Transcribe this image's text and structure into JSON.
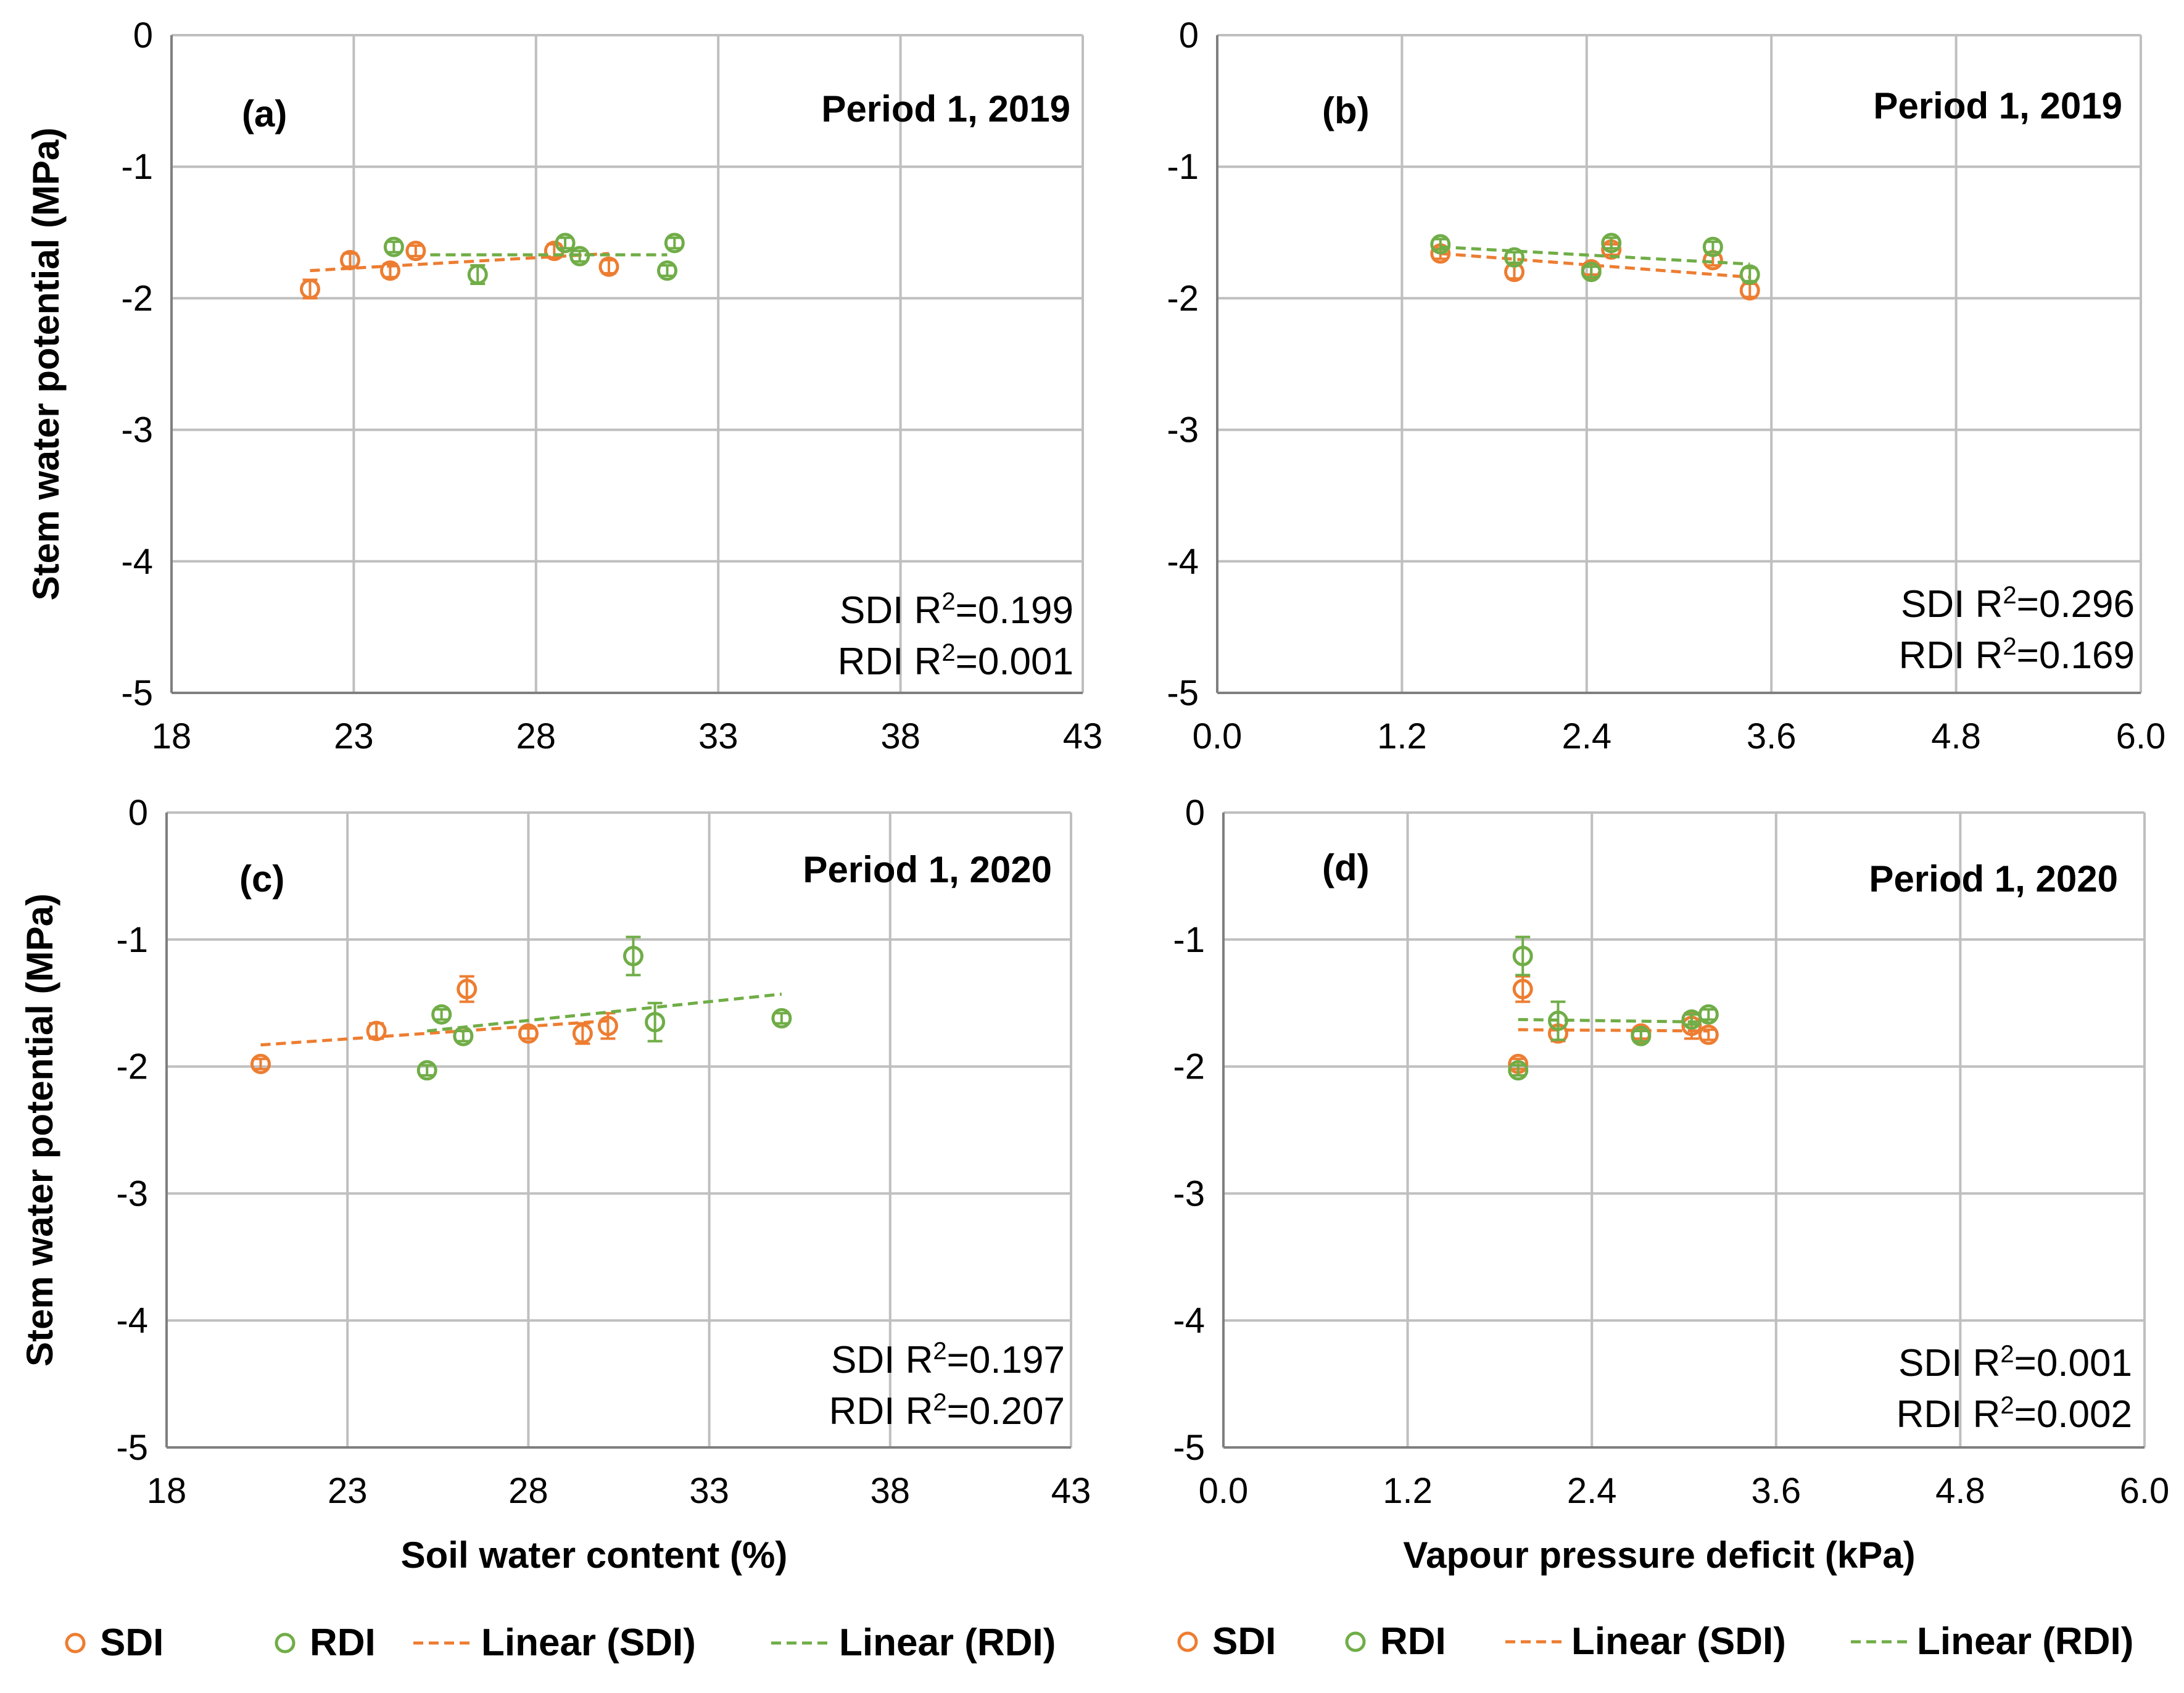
{
  "colors": {
    "sdi": "#ED7D31",
    "rdi": "#70AD47",
    "grid": "#BFBFBF",
    "axis": "#7F7F7F"
  },
  "legends": [
    {
      "items": [
        "SDI",
        "RDI",
        "Linear (SDI)",
        "Linear (RDI)"
      ]
    },
    {
      "items": [
        "SDI",
        "RDI",
        "Linear (SDI)",
        "Linear (RDI)"
      ]
    }
  ],
  "chart_data": [
    {
      "type": "scatter",
      "panel": "(a)",
      "title": "Period 1, 2019",
      "xlabel": "",
      "ylabel": "Stem water potential (MPa)",
      "xlim": [
        18,
        43
      ],
      "xticks": [
        18,
        23,
        28,
        33,
        38,
        43
      ],
      "xdec": 0,
      "ylim": [
        -5,
        0
      ],
      "yticks": [
        0,
        -1,
        -2,
        -3,
        -4,
        -5
      ],
      "r2": {
        "sdi_prefix": "SDI R",
        "sdi_value": "=0.199",
        "rdi_prefix": "RDI R",
        "rdi_value": "=0.001",
        "sup": "2"
      },
      "series": [
        {
          "name": "SDI",
          "x": [
            21.8,
            22.9,
            24.0,
            24.7,
            28.5,
            30.0
          ],
          "y": [
            -1.93,
            -1.71,
            -1.79,
            -1.64,
            -1.64,
            -1.76
          ],
          "err": [
            0.07,
            0.05,
            0.05,
            0.04,
            0.05,
            0.05
          ],
          "trend": {
            "x": [
              21.8,
              30.0
            ],
            "y": [
              -1.79,
              -1.66
            ]
          }
        },
        {
          "name": "RDI",
          "x": [
            24.1,
            26.4,
            28.8,
            29.2,
            31.6,
            31.8
          ],
          "y": [
            -1.61,
            -1.82,
            -1.58,
            -1.68,
            -1.79,
            -1.58
          ],
          "err": [
            0.04,
            0.07,
            0.04,
            0.04,
            0.04,
            0.04
          ],
          "trend": {
            "x": [
              25.1,
              31.6
            ],
            "y": [
              -1.67,
              -1.67
            ]
          }
        }
      ]
    },
    {
      "type": "scatter",
      "panel": "(b)",
      "title": "Period 1, 2019",
      "xlabel": "",
      "ylabel": "",
      "xlim": [
        0,
        6
      ],
      "xticks": [
        0,
        1.2,
        2.4,
        3.6,
        4.8,
        6.0
      ],
      "xdec": 1,
      "ylim": [
        -5,
        0
      ],
      "yticks": [
        0,
        -1,
        -2,
        -3,
        -4,
        -5
      ],
      "r2": {
        "sdi_prefix": "SDI R",
        "sdi_value": "=0.296",
        "rdi_prefix": "RDI R",
        "rdi_value": "=0.169",
        "sup": "2"
      },
      "series": [
        {
          "name": "SDI",
          "x": [
            1.45,
            1.93,
            2.43,
            2.56,
            3.22,
            3.46
          ],
          "y": [
            -1.66,
            -1.8,
            -1.78,
            -1.63,
            -1.71,
            -1.94
          ],
          "err": [
            0.04,
            0.05,
            0.04,
            0.04,
            0.04,
            0.05
          ],
          "trend": {
            "x": [
              1.45,
              3.46
            ],
            "y": [
              -1.66,
              -1.84
            ]
          }
        },
        {
          "name": "RDI",
          "x": [
            1.45,
            1.93,
            2.43,
            2.56,
            3.22,
            3.46
          ],
          "y": [
            -1.59,
            -1.69,
            -1.8,
            -1.58,
            -1.61,
            -1.82
          ],
          "err": [
            0.04,
            0.04,
            0.04,
            0.04,
            0.04,
            0.05
          ],
          "trend": {
            "x": [
              1.45,
              3.46
            ],
            "y": [
              -1.61,
              -1.74
            ]
          }
        }
      ]
    },
    {
      "type": "scatter",
      "panel": "(c)",
      "title": "Period 1, 2020",
      "xlabel": "Soil water content (%)",
      "ylabel": "Stem water potential (MPa)",
      "xlim": [
        18,
        43
      ],
      "xticks": [
        18,
        23,
        28,
        33,
        38,
        43
      ],
      "xdec": 0,
      "ylim": [
        -5,
        0
      ],
      "yticks": [
        0,
        -1,
        -2,
        -3,
        -4,
        -5
      ],
      "r2": {
        "sdi_prefix": "SDI R",
        "sdi_value": "=0.197",
        "rdi_prefix": "RDI R",
        "rdi_value": "=0.207",
        "sup": "2"
      },
      "series": [
        {
          "name": "SDI",
          "x": [
            20.6,
            23.8,
            26.3,
            28.0,
            29.5,
            30.2
          ],
          "y": [
            -1.98,
            -1.72,
            -1.39,
            -1.74,
            -1.74,
            -1.68
          ],
          "err": [
            0.04,
            0.06,
            0.1,
            0.04,
            0.08,
            0.1
          ],
          "trend": {
            "x": [
              20.6,
              30.2
            ],
            "y": [
              -1.83,
              -1.64
            ]
          }
        },
        {
          "name": "RDI",
          "x": [
            25.2,
            25.6,
            26.2,
            30.9,
            31.5,
            35.0
          ],
          "y": [
            -2.03,
            -1.59,
            -1.76,
            -1.13,
            -1.65,
            -1.62
          ],
          "err": [
            0.04,
            0.04,
            0.04,
            0.15,
            0.15,
            0.04
          ],
          "trend": {
            "x": [
              25.2,
              35.0
            ],
            "y": [
              -1.72,
              -1.43
            ]
          }
        }
      ]
    },
    {
      "type": "scatter",
      "panel": "(d)",
      "title": "Period 1, 2020",
      "xlabel": "Vapour pressure deficit (kPa)",
      "ylabel": "",
      "xlim": [
        0,
        6
      ],
      "xticks": [
        0,
        1.2,
        2.4,
        3.6,
        4.8,
        6.0
      ],
      "xdec": 1,
      "ylim": [
        -5,
        0
      ],
      "yticks": [
        0,
        -1,
        -2,
        -3,
        -4,
        -5
      ],
      "r2": {
        "sdi_prefix": "SDI R",
        "sdi_value": "=0.001",
        "rdi_prefix": "RDI R",
        "rdi_value": "=0.002",
        "sup": "2"
      },
      "series": [
        {
          "name": "SDI",
          "x": [
            1.92,
            1.95,
            2.18,
            2.72,
            3.05,
            3.16
          ],
          "y": [
            -1.98,
            -1.39,
            -1.74,
            -1.74,
            -1.68,
            -1.75
          ],
          "err": [
            0.04,
            0.1,
            0.06,
            0.04,
            0.1,
            0.04
          ],
          "trend": {
            "x": [
              1.92,
              3.16
            ],
            "y": [
              -1.71,
              -1.72
            ]
          }
        },
        {
          "name": "RDI",
          "x": [
            1.92,
            1.95,
            2.18,
            2.72,
            3.05,
            3.16
          ],
          "y": [
            -2.03,
            -1.13,
            -1.64,
            -1.76,
            -1.63,
            -1.59
          ],
          "err": [
            0.04,
            0.15,
            0.15,
            0.04,
            0.04,
            0.04
          ],
          "trend": {
            "x": [
              1.92,
              3.16
            ],
            "y": [
              -1.63,
              -1.65
            ]
          }
        }
      ]
    }
  ]
}
